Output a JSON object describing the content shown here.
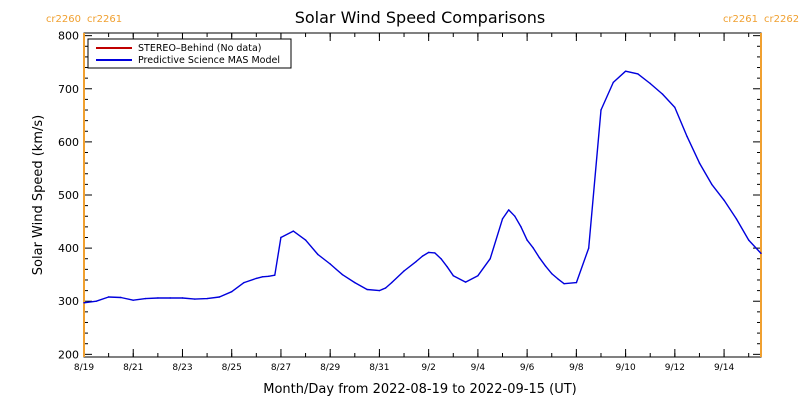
{
  "chart_data": {
    "type": "line",
    "title": "Solar Wind Speed Comparisons",
    "xlabel": "Month/Day from 2022-08-19 to 2022-09-15 (UT)",
    "ylabel": "Solar Wind Speed (km/s)",
    "ylim": [
      195,
      805
    ],
    "xlim": [
      "2022-08-19",
      "2022-09-15T12:00"
    ],
    "y_ticks": [
      200,
      300,
      400,
      500,
      600,
      700,
      800
    ],
    "x_tick_labels": [
      "8/19",
      "8/21",
      "8/23",
      "8/25",
      "8/27",
      "8/29",
      "8/31",
      "9/2",
      "9/4",
      "9/6",
      "9/8",
      "9/10",
      "9/12",
      "9/14"
    ],
    "x_tick_dates": [
      "2022-08-19",
      "2022-08-21",
      "2022-08-23",
      "2022-08-25",
      "2022-08-27",
      "2022-08-29",
      "2022-08-31",
      "2022-09-02",
      "2022-09-04",
      "2022-09-06",
      "2022-09-08",
      "2022-09-10",
      "2022-09-12",
      "2022-09-14"
    ],
    "legend_placement": "top-left",
    "grid": false,
    "carrington_markers": [
      {
        "date": "2022-08-19",
        "label_left": "cr2260",
        "label_right": "cr2261",
        "color": "#f0a030"
      },
      {
        "date": "2022-09-15T12:00",
        "label_left": "cr2261",
        "label_right": "cr2262",
        "color": "#f0a030"
      }
    ],
    "series": [
      {
        "name": "STEREO–Behind (No data)",
        "color": "#c00000",
        "x": [],
        "y": []
      },
      {
        "name": "Predictive Science MAS Model",
        "color": "#0000dd",
        "x": [
          "2022-08-19T00:00",
          "2022-08-19T12:00",
          "2022-08-20T00:00",
          "2022-08-20T12:00",
          "2022-08-21T00:00",
          "2022-08-21T12:00",
          "2022-08-22T00:00",
          "2022-08-22T12:00",
          "2022-08-23T00:00",
          "2022-08-23T12:00",
          "2022-08-24T00:00",
          "2022-08-24T12:00",
          "2022-08-25T00:00",
          "2022-08-25T12:00",
          "2022-08-26T00:00",
          "2022-08-26T06:00",
          "2022-08-26T12:00",
          "2022-08-26T18:00",
          "2022-08-27T00:00",
          "2022-08-27T12:00",
          "2022-08-28T00:00",
          "2022-08-28T12:00",
          "2022-08-29T00:00",
          "2022-08-29T06:00",
          "2022-08-29T12:00",
          "2022-08-30T00:00",
          "2022-08-30T12:00",
          "2022-08-31T00:00",
          "2022-08-31T06:00",
          "2022-08-31T12:00",
          "2022-09-01T00:00",
          "2022-09-01T12:00",
          "2022-09-01T18:00",
          "2022-09-02T00:00",
          "2022-09-02T06:00",
          "2022-09-02T12:00",
          "2022-09-02T18:00",
          "2022-09-03T00:00",
          "2022-09-03T12:00",
          "2022-09-04T00:00",
          "2022-09-04T12:00",
          "2022-09-05T00:00",
          "2022-09-05T06:00",
          "2022-09-05T12:00",
          "2022-09-05T18:00",
          "2022-09-06T00:00",
          "2022-09-06T06:00",
          "2022-09-06T12:00",
          "2022-09-06T18:00",
          "2022-09-07T00:00",
          "2022-09-07T06:00",
          "2022-09-07T12:00",
          "2022-09-08T00:00",
          "2022-09-08T12:00",
          "2022-09-09T00:00",
          "2022-09-09T12:00",
          "2022-09-10T00:00",
          "2022-09-10T12:00",
          "2022-09-11T00:00",
          "2022-09-11T12:00",
          "2022-09-12T00:00",
          "2022-09-12T12:00",
          "2022-09-13T00:00",
          "2022-09-13T12:00",
          "2022-09-14T00:00",
          "2022-09-14T12:00",
          "2022-09-15T00:00",
          "2022-09-15T12:00"
        ],
        "y": [
          297,
          300,
          308,
          307,
          302,
          305,
          306,
          306,
          306,
          304,
          305,
          308,
          318,
          335,
          343,
          346,
          347,
          349,
          420,
          432,
          415,
          388,
          370,
          360,
          350,
          335,
          322,
          320,
          325,
          335,
          357,
          375,
          385,
          392,
          391,
          380,
          365,
          348,
          336,
          348,
          380,
          455,
          472,
          460,
          440,
          415,
          400,
          382,
          366,
          352,
          342,
          333,
          335,
          400,
          660,
          712,
          733,
          728,
          710,
          690,
          665,
          610,
          560,
          520,
          490,
          455,
          415,
          390
        ]
      }
    ]
  }
}
